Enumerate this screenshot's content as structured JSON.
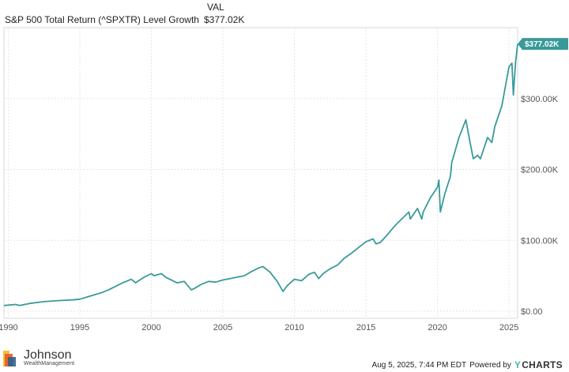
{
  "header": {
    "column_label": "VAL",
    "series_label": "S&P 500 Total Return (^SPXTR) Level Growth",
    "series_value": "$377.02K"
  },
  "colors": {
    "series": "#3a9a9a",
    "grid": "#e6e6e6",
    "axis_text": "#555555"
  },
  "chart_data": {
    "type": "line",
    "title": "",
    "xlabel": "",
    "ylabel": "",
    "xlim": [
      1989.7,
      2025.6
    ],
    "ylim": [
      -10000,
      400000
    ],
    "x_ticks": [
      {
        "x": 1990,
        "label": "1990"
      },
      {
        "x": 1995,
        "label": "1995"
      },
      {
        "x": 2000,
        "label": "2000"
      },
      {
        "x": 2005,
        "label": "2005"
      },
      {
        "x": 2010,
        "label": "2010"
      },
      {
        "x": 2015,
        "label": "2015"
      },
      {
        "x": 2020,
        "label": "2020"
      },
      {
        "x": 2025,
        "label": "2025"
      }
    ],
    "y_ticks": [
      {
        "y": 0,
        "label": "$0.00"
      },
      {
        "y": 100000,
        "label": "$100.00K"
      },
      {
        "y": 200000,
        "label": "$200.00K"
      },
      {
        "y": 300000,
        "label": "$300.00K"
      }
    ],
    "grid": true,
    "end_label": "$377.02K",
    "series": [
      {
        "name": "S&P 500 Total Return (^SPXTR) Level Growth",
        "x": [
          1989.7,
          1990.5,
          1990.8,
          1991.5,
          1992.5,
          1993.5,
          1994.5,
          1995.0,
          1995.5,
          1996.0,
          1996.5,
          1997.0,
          1997.6,
          1998.0,
          1998.6,
          1998.9,
          1999.5,
          2000.0,
          2000.2,
          2000.7,
          2001.0,
          2001.5,
          2001.8,
          2002.3,
          2002.8,
          2003.0,
          2003.5,
          2004.0,
          2004.5,
          2005.0,
          2005.5,
          2006.0,
          2006.5,
          2007.0,
          2007.5,
          2007.8,
          2008.3,
          2008.8,
          2009.2,
          2009.5,
          2010.0,
          2010.5,
          2011.0,
          2011.4,
          2011.7,
          2012.0,
          2012.5,
          2013.0,
          2013.5,
          2014.0,
          2014.5,
          2015.0,
          2015.5,
          2015.7,
          2016.0,
          2016.5,
          2017.0,
          2017.5,
          2018.0,
          2018.1,
          2018.6,
          2018.9,
          2019.0,
          2019.5,
          2020.0,
          2020.1,
          2020.2,
          2020.5,
          2020.9,
          2021.0,
          2021.5,
          2021.98,
          2022.3,
          2022.5,
          2022.8,
          2023.0,
          2023.5,
          2023.8,
          2024.0,
          2024.5,
          2025.0,
          2025.2,
          2025.3,
          2025.45,
          2025.6
        ],
        "y": [
          8000,
          9500,
          8000,
          11000,
          13500,
          15000,
          16000,
          17000,
          20000,
          23000,
          26000,
          30000,
          36000,
          40000,
          45000,
          40000,
          48000,
          53000,
          50000,
          53000,
          48000,
          43000,
          40000,
          42000,
          30000,
          32000,
          38000,
          42000,
          41000,
          44000,
          46000,
          48000,
          50000,
          56000,
          61000,
          63000,
          55000,
          42000,
          28000,
          36000,
          45000,
          43000,
          52000,
          55000,
          46000,
          53000,
          60000,
          65000,
          75000,
          82000,
          90000,
          98000,
          102000,
          95000,
          97000,
          108000,
          120000,
          130000,
          140000,
          130000,
          145000,
          130000,
          140000,
          160000,
          175000,
          185000,
          140000,
          165000,
          190000,
          210000,
          245000,
          270000,
          235000,
          215000,
          220000,
          215000,
          245000,
          238000,
          260000,
          290000,
          345000,
          350000,
          305000,
          350000,
          377020
        ]
      }
    ]
  },
  "branding": {
    "logo_main": "Johnson",
    "logo_sub": "WealthManagement",
    "timestamp": "Aug 5, 2025, 7:44 PM EDT",
    "powered_by": "Powered by",
    "provider_brand": "CHARTS"
  }
}
